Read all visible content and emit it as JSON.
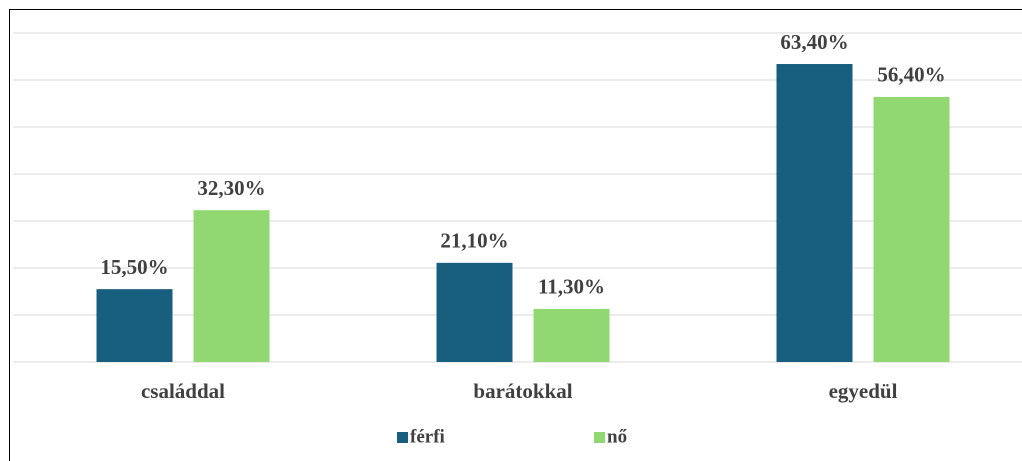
{
  "chart_data": {
    "type": "bar",
    "categories": [
      "családdal",
      "barátokkal",
      "egyedül"
    ],
    "series": [
      {
        "name": "férfi",
        "color": "#175e7f",
        "values": [
          15.5,
          21.1,
          63.4
        ],
        "value_labels": [
          "15,50%",
          "21,10%",
          "63,40%"
        ]
      },
      {
        "name": "nő",
        "color": "#92d872",
        "values": [
          32.3,
          11.3,
          56.4
        ],
        "value_labels": [
          "32,30%",
          "11,30%",
          "56,40%"
        ]
      }
    ],
    "ylim": [
      0,
      70
    ],
    "yticks": [
      0,
      10,
      20,
      30,
      40,
      50,
      60,
      70
    ],
    "grid": true,
    "legend": "bottom"
  }
}
